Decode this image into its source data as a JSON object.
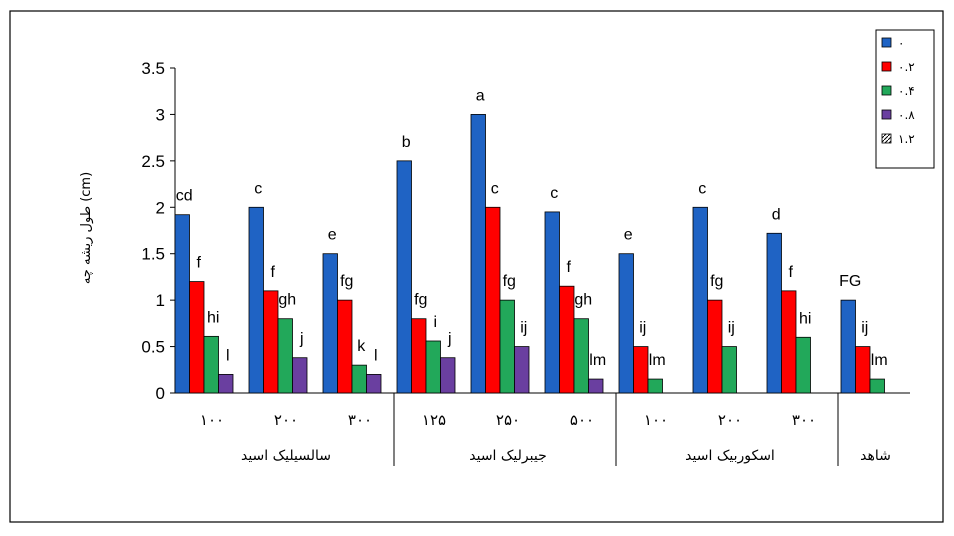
{
  "chart_data": {
    "type": "bar",
    "ylabel": "طول ریشه چه (cm)",
    "ylim": [
      0,
      3.5
    ],
    "yticks": [
      "0",
      "0.5",
      "1",
      "1.5",
      "2",
      "2.5",
      "3",
      "3.5"
    ],
    "grid": false,
    "legend_position": "top-right",
    "legend": [
      {
        "name": "۰",
        "color": "#1f63c4"
      },
      {
        "name": "۰.۲",
        "color": "#ff0000"
      },
      {
        "name": "۰.۴",
        "color": "#22a85a"
      },
      {
        "name": "۰.۸",
        "color": "#6a3fa0"
      },
      {
        "name": "۱.۲",
        "color": "#cccccc",
        "pattern": "hatched"
      }
    ],
    "groups": [
      {
        "label": "سالسیلیک اسید",
        "categories": [
          {
            "label": "۱۰۰",
            "values": [
              1.92,
              1.2,
              0.61,
              0.2
            ],
            "letters": [
              "cd",
              "f",
              "hi",
              "l"
            ]
          },
          {
            "label": "۲۰۰",
            "values": [
              2.0,
              1.1,
              0.8,
              0.38
            ],
            "letters": [
              "c",
              "f",
              "gh",
              "j"
            ]
          },
          {
            "label": "۳۰۰",
            "values": [
              1.5,
              1.0,
              0.3,
              0.2
            ],
            "letters": [
              "e",
              "fg",
              "k",
              "l"
            ]
          }
        ]
      },
      {
        "label": "جیبرلیک اسید",
        "categories": [
          {
            "label": "۱۲۵",
            "values": [
              2.5,
              0.8,
              0.56,
              0.38
            ],
            "letters": [
              "b",
              "fg",
              "i",
              "j"
            ]
          },
          {
            "label": "۲۵۰",
            "values": [
              3.0,
              2.0,
              1.0,
              0.5
            ],
            "letters": [
              "a",
              "c",
              "fg",
              "ij"
            ]
          },
          {
            "label": "۵۰۰",
            "values": [
              1.95,
              1.15,
              0.8,
              0.15
            ],
            "letters": [
              "c",
              "f",
              "gh",
              "lm"
            ]
          }
        ]
      },
      {
        "label": "اسکوربیک اسید",
        "categories": [
          {
            "label": "۱۰۰",
            "values": [
              1.5,
              0.5,
              0.15
            ],
            "letters": [
              "e",
              "ij",
              "lm"
            ]
          },
          {
            "label": "۲۰۰",
            "values": [
              2.0,
              1.0,
              0.5
            ],
            "letters": [
              "c",
              "fg",
              "ij"
            ]
          },
          {
            "label": "۳۰۰",
            "values": [
              1.72,
              1.1,
              0.6
            ],
            "letters": [
              "d",
              "f",
              "hi"
            ]
          }
        ]
      },
      {
        "label": "شاهد",
        "categories": [
          {
            "label": "",
            "values": [
              1.0,
              0.5,
              0.15
            ],
            "letters": [
              "FG",
              "ij",
              "lm"
            ]
          }
        ]
      }
    ]
  }
}
